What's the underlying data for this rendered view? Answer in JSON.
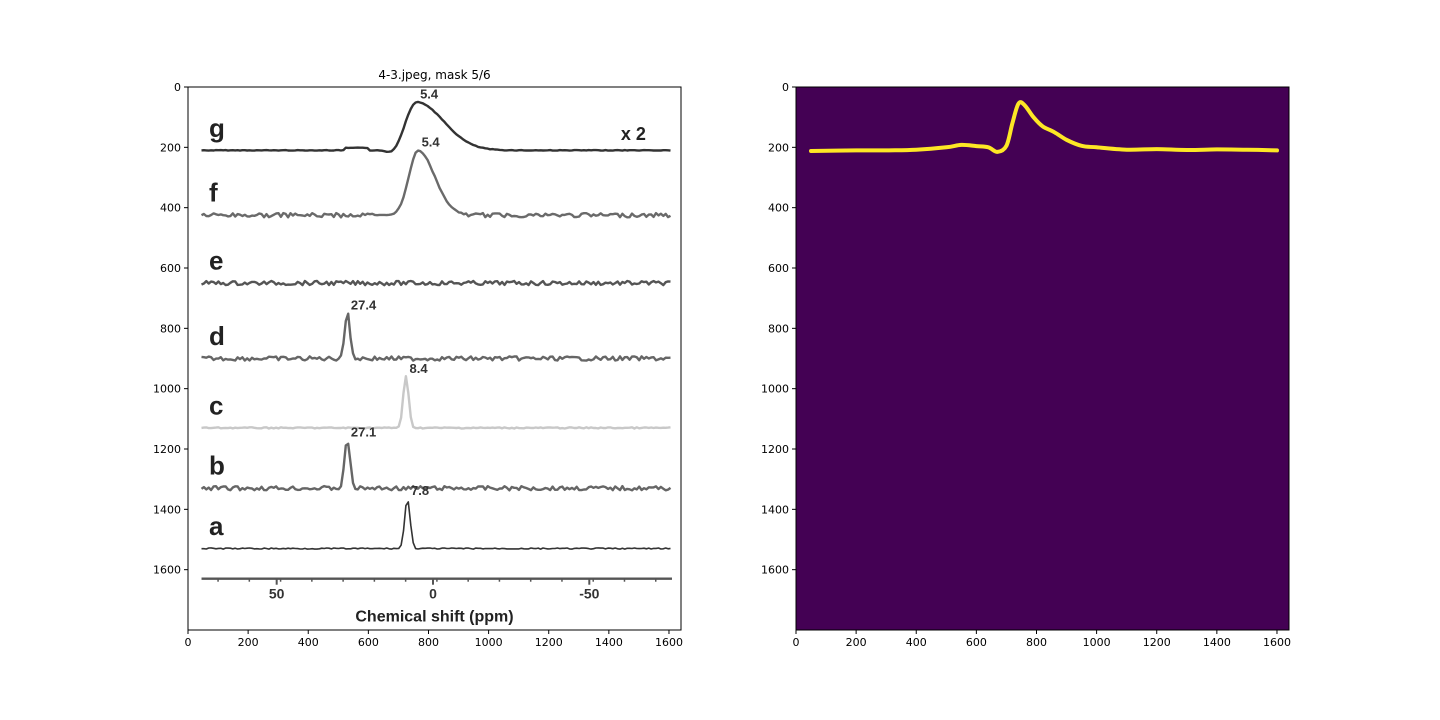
{
  "chart_data": [
    {
      "type": "image",
      "title": "4-3.jpeg, mask 5/6",
      "xlim": [
        0,
        1640
      ],
      "ylim": [
        1800,
        0
      ],
      "xticks": [
        0,
        200,
        400,
        600,
        800,
        1000,
        1200,
        1400,
        1600
      ],
      "yticks": [
        0,
        200,
        400,
        600,
        800,
        1000,
        1200,
        1400,
        1600
      ],
      "image_content": {
        "spectra": [
          {
            "label": "g",
            "baseline": 210,
            "peak_x": 760,
            "peak_y": 50,
            "peak_label": "5.4",
            "color": "#333333"
          },
          {
            "label": "f",
            "baseline": 425,
            "peak_x": 765,
            "peak_y": 210,
            "peak_label": "5.4",
            "color": "#6a6a6a"
          },
          {
            "label": "e",
            "baseline": 650,
            "peak_x": null,
            "peak_y": null,
            "peak_label": "",
            "color": "#555555"
          },
          {
            "label": "d",
            "baseline": 900,
            "peak_x": 530,
            "peak_y": 750,
            "peak_label": "27.4",
            "color": "#666666"
          },
          {
            "label": "c",
            "baseline": 1130,
            "peak_x": 725,
            "peak_y": 960,
            "peak_label": "8.4",
            "color": "#c8c8c8"
          },
          {
            "label": "b",
            "baseline": 1330,
            "peak_x": 530,
            "peak_y": 1170,
            "peak_label": "27.1",
            "color": "#666666"
          },
          {
            "label": "a",
            "baseline": 1530,
            "peak_x": 730,
            "peak_y": 1365,
            "peak_label": "7.8",
            "color": "#333333"
          }
        ],
        "factor_label": "x 2",
        "ppm_ticks": [
          {
            "label": "50",
            "x": 295
          },
          {
            "label": "0",
            "x": 815
          },
          {
            "label": "-50",
            "x": 1335
          }
        ],
        "ppm_axis_y": 1630,
        "ppm_axis_title": "Chemical shift (ppm)"
      }
    },
    {
      "type": "image",
      "title": "",
      "xlim": [
        0,
        1640
      ],
      "ylim": [
        1800,
        0
      ],
      "xticks": [
        0,
        200,
        400,
        600,
        800,
        1000,
        1200,
        1400,
        1600
      ],
      "yticks": [
        0,
        200,
        400,
        600,
        800,
        1000,
        1200,
        1400,
        1600
      ],
      "background_color": "#440154",
      "mask_color": "#fde725",
      "mask_curve": {
        "x": [
          50,
          200,
          300,
          400,
          500,
          550,
          600,
          640,
          670,
          700,
          720,
          740,
          760,
          790,
          820,
          860,
          900,
          950,
          1000,
          1100,
          1200,
          1300,
          1400,
          1500,
          1600
        ],
        "y": [
          212,
          210,
          210,
          208,
          200,
          192,
          196,
          200,
          215,
          195,
          120,
          55,
          60,
          100,
          130,
          150,
          175,
          195,
          200,
          208,
          206,
          209,
          207,
          208,
          210
        ]
      }
    }
  ]
}
